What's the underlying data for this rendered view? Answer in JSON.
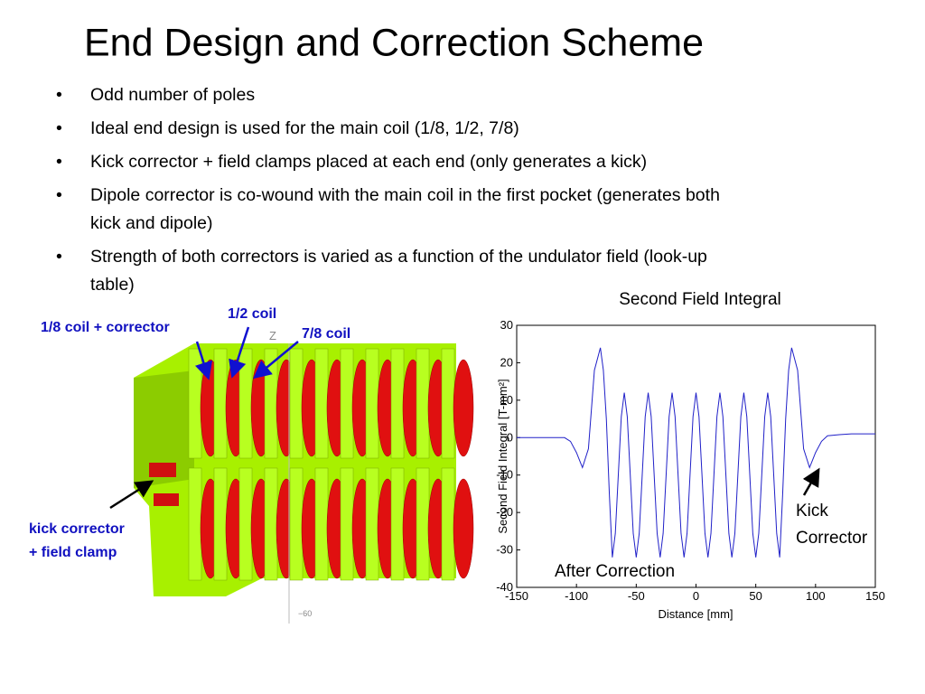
{
  "header": {
    "title": "End Design and Correction Scheme"
  },
  "bullets": [
    [
      "Odd number of poles"
    ],
    [
      "Ideal end design is used for the main coil (1/8, 1/2, 7/8)"
    ],
    [
      "Kick corrector + field clamps placed at each end (only generates a kick)"
    ],
    [
      "Dipole corrector is co-wound with the main coil in the first pocket (generates both",
      "kick and dipole)"
    ],
    [
      "Strength of both correctors is varied as a function of the undulator field (look-up",
      "table)"
    ]
  ],
  "figure": {
    "labels": {
      "coil_1_8": "1/8 coil + corrector",
      "coil_1_2": "1/2 coil",
      "coil_7_8": "7/8 coil",
      "kick": [
        "kick corrector ",
        "+ field clamp"
      ]
    },
    "axis_z": "Z",
    "axis_tick": "−60"
  },
  "chart_data": {
    "type": "line",
    "title": "Second Field Integral",
    "x_label": "Distance [mm]",
    "y_label": "Second Field Integral [T-mm²]",
    "color": "#2020c8",
    "x": [
      -150,
      -140,
      -130,
      -120,
      -110,
      -105,
      -100,
      -95,
      -90,
      -85,
      -80,
      -77.5,
      -75,
      -72.5,
      -70,
      -67.5,
      -65,
      -62.5,
      -60,
      -57.5,
      -55,
      -52.5,
      -50,
      -47.5,
      -45,
      -42.5,
      -40,
      -37.5,
      -35,
      -32.5,
      -30,
      -27.5,
      -25,
      -22.5,
      -20,
      -17.5,
      -15,
      -12.5,
      -10,
      -7.5,
      -5,
      -2.5,
      0,
      2.5,
      5,
      7.5,
      10,
      12.5,
      15,
      17.5,
      20,
      22.5,
      25,
      27.5,
      30,
      32.5,
      35,
      37.5,
      40,
      42.5,
      45,
      47.5,
      50,
      52.5,
      55,
      57.5,
      60,
      62.5,
      65,
      67.5,
      70,
      72.5,
      75,
      77.5,
      80,
      85,
      90,
      95,
      100,
      105,
      110,
      120,
      130,
      140,
      150
    ],
    "values": [
      0,
      0,
      0,
      0,
      0,
      -1,
      -4,
      -8,
      -3,
      18,
      24,
      18,
      5,
      -15,
      -32,
      -25.6,
      -10,
      5.6,
      12,
      5.6,
      -10,
      -25.6,
      -32,
      -25.6,
      -10,
      5.6,
      12,
      5.6,
      -10,
      -25.6,
      -32,
      -25.6,
      -10,
      5.6,
      12,
      5.6,
      -10,
      -25.6,
      -32,
      -25.6,
      -10,
      5.6,
      12,
      5.6,
      -10,
      -25.6,
      -32,
      -25.6,
      -10,
      5.6,
      12,
      5.6,
      -10,
      -25.6,
      -32,
      -25.6,
      -10,
      5.6,
      12,
      5.6,
      -10,
      -25.6,
      -32,
      -25.6,
      -10,
      5.6,
      12,
      5.6,
      -10,
      -25.6,
      -32,
      -15,
      5,
      18,
      24,
      18,
      -3,
      -8,
      -4,
      -1,
      0.5,
      0.8,
      1,
      1,
      1
    ],
    "xlim": [
      -150,
      150
    ],
    "xticks": [
      -150,
      -100,
      -50,
      0,
      50,
      100,
      150
    ],
    "ylim": [
      -40,
      30
    ],
    "yticks": [
      -40,
      -30,
      -20,
      -10,
      0,
      10,
      20,
      30
    ],
    "annotations": {
      "after": "After Correction",
      "kick": [
        "Kick",
        "Corrector"
      ]
    }
  }
}
